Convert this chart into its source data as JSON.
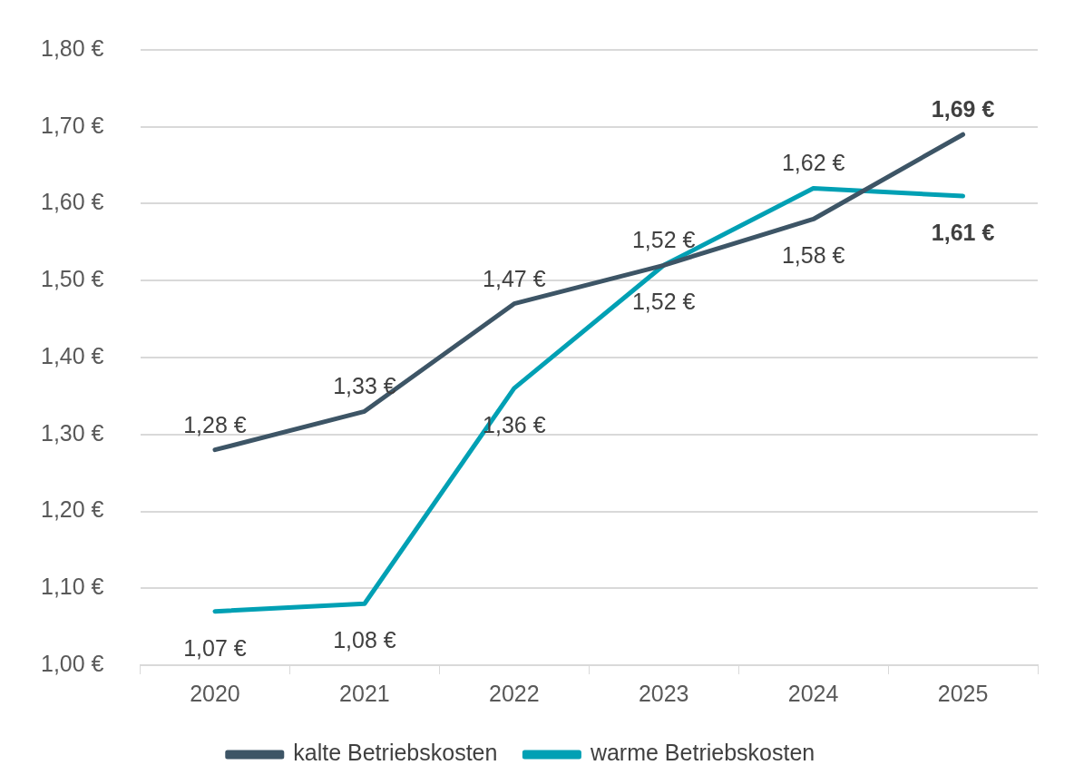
{
  "chart_data": {
    "type": "line",
    "categories": [
      "2020",
      "2021",
      "2022",
      "2023",
      "2024",
      "2025"
    ],
    "series": [
      {
        "name": "kalte Betriebskosten",
        "color": "#3d5566",
        "values": [
          1.28,
          1.33,
          1.47,
          1.52,
          1.58,
          1.69
        ],
        "value_labels": [
          "1,28 €",
          "1,33 €",
          "1,47 €",
          "1,52 €",
          "1,58 €",
          "1,69 €"
        ]
      },
      {
        "name": "warme Betriebskosten",
        "color": "#00a0b4",
        "values": [
          1.07,
          1.08,
          1.36,
          1.52,
          1.62,
          1.61
        ],
        "value_labels": [
          "1,07 €",
          "1,08 €",
          "1,36 €",
          "1,52 €",
          "1,62 €",
          "1,61 €"
        ]
      }
    ],
    "ylim": [
      1.0,
      1.8
    ],
    "yticks": [
      {
        "value": 1.0,
        "label": "1,00 €"
      },
      {
        "value": 1.1,
        "label": "1,10 €"
      },
      {
        "value": 1.2,
        "label": "1,20 €"
      },
      {
        "value": 1.3,
        "label": "1,30 €"
      },
      {
        "value": 1.4,
        "label": "1,40 €"
      },
      {
        "value": 1.5,
        "label": "1,50 €"
      },
      {
        "value": 1.6,
        "label": "1,60 €"
      },
      {
        "value": 1.7,
        "label": "1,70 €"
      },
      {
        "value": 1.8,
        "label": "1,80 €"
      }
    ],
    "grid": "y",
    "legend": "bottom",
    "marker": "none",
    "line_style": "solid"
  }
}
